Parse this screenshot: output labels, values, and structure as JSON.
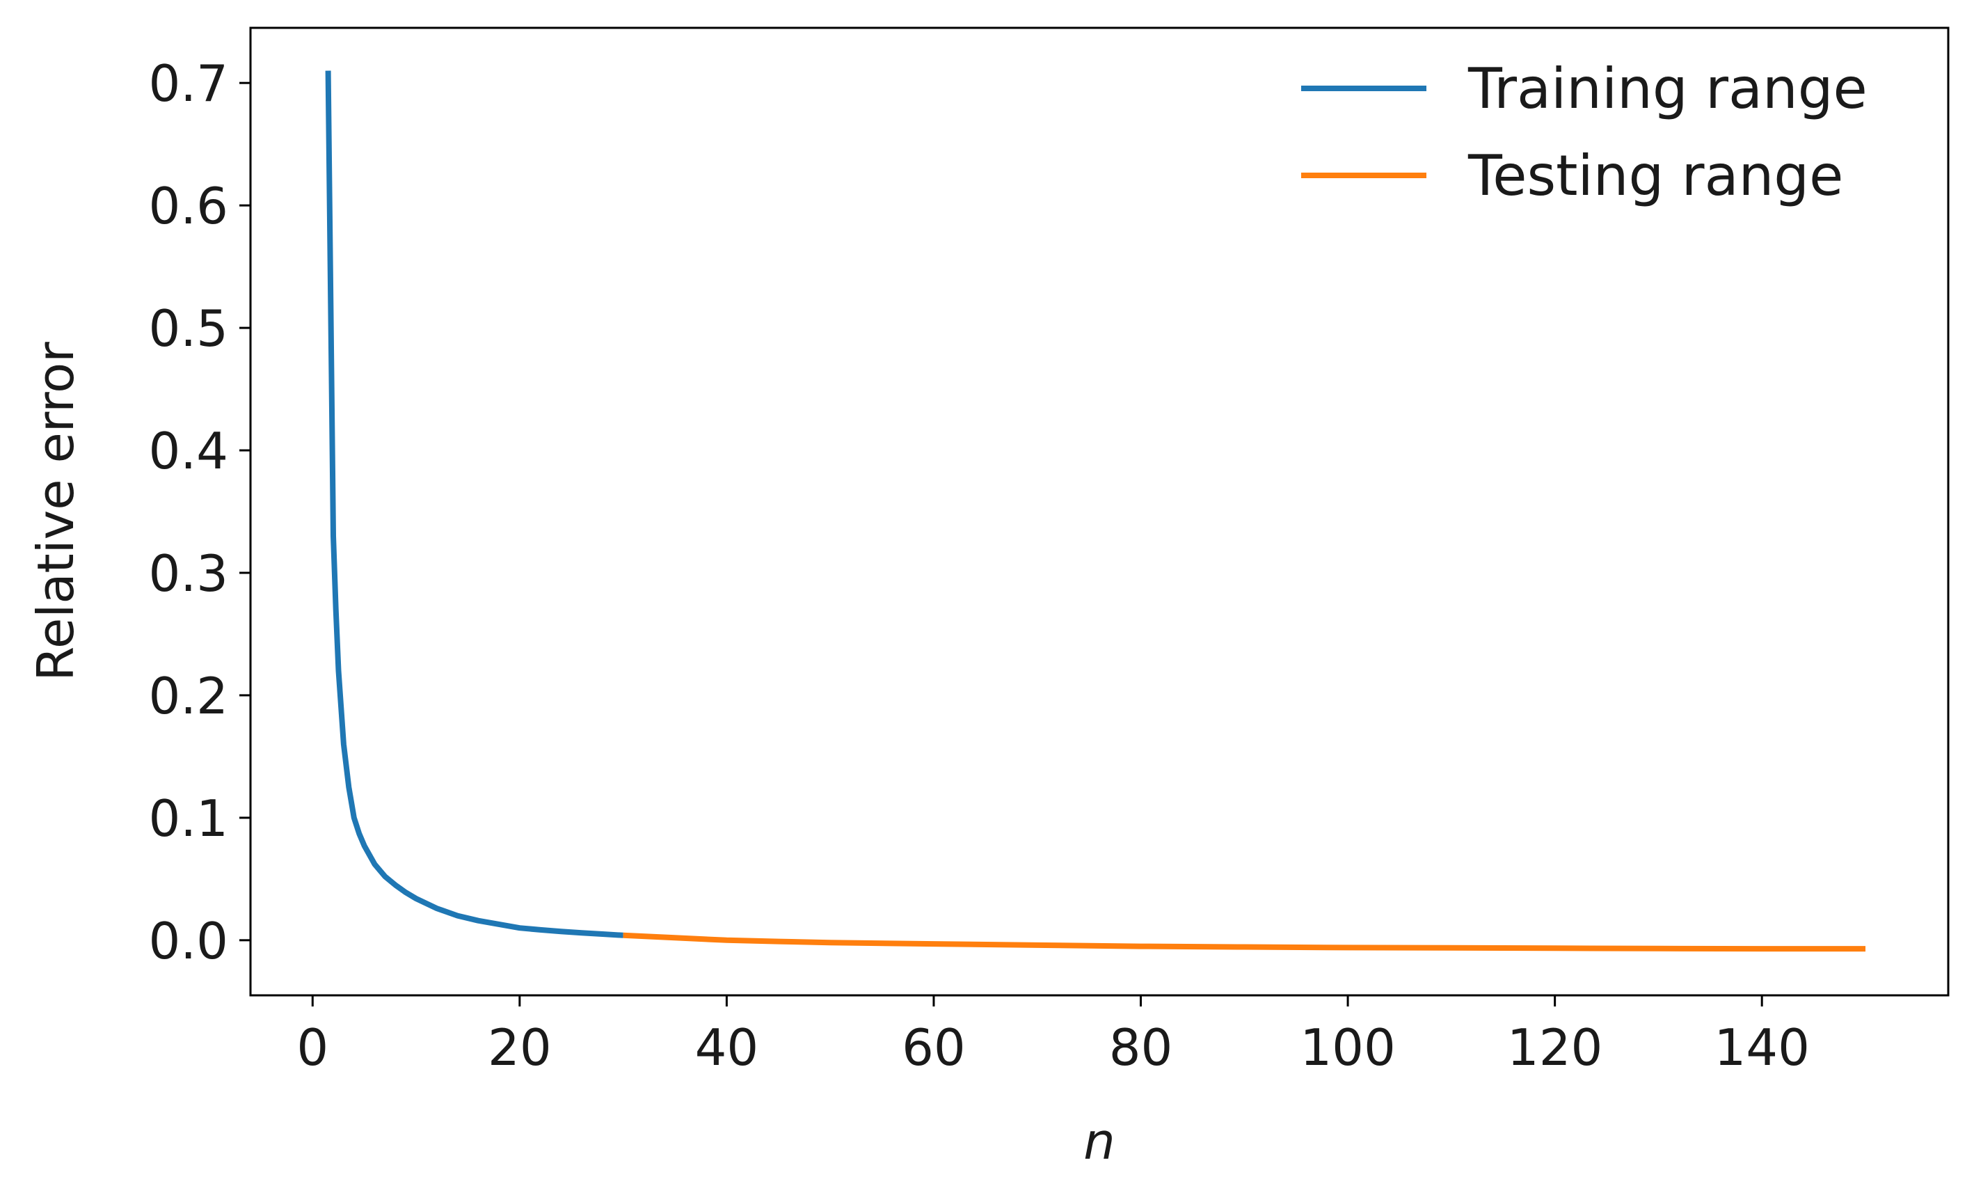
{
  "chart_data": {
    "type": "line",
    "xlabel": "n",
    "ylabel": "Relative error",
    "xlim": [
      -6,
      158
    ],
    "ylim": [
      -0.045,
      0.745
    ],
    "xticks": [
      0,
      20,
      40,
      60,
      80,
      100,
      120,
      140
    ],
    "yticks": [
      0.0,
      0.1,
      0.2,
      0.3,
      0.4,
      0.5,
      0.6,
      0.7
    ],
    "ytick_labels": [
      "0.0",
      "0.1",
      "0.2",
      "0.3",
      "0.4",
      "0.5",
      "0.6",
      "0.7"
    ],
    "grid": false,
    "legend": "top-right",
    "series": [
      {
        "name": "Training range",
        "color": "#1f77b4",
        "x": [
          1.5,
          1.75,
          2,
          2.25,
          2.5,
          3,
          3.5,
          4,
          4.5,
          5,
          6,
          7,
          8,
          9,
          10,
          12,
          14,
          16,
          18,
          20,
          22,
          24,
          26,
          28,
          30
        ],
        "y": [
          0.71,
          0.52,
          0.33,
          0.27,
          0.22,
          0.16,
          0.125,
          0.1,
          0.087,
          0.077,
          0.062,
          0.052,
          0.045,
          0.039,
          0.034,
          0.026,
          0.02,
          0.016,
          0.013,
          0.01,
          0.0085,
          0.0072,
          0.006,
          0.005,
          0.004
        ]
      },
      {
        "name": "Testing range",
        "color": "#ff7f0e",
        "x": [
          30,
          35,
          40,
          45,
          50,
          60,
          70,
          80,
          90,
          100,
          110,
          120,
          130,
          140,
          150
        ],
        "y": [
          0.004,
          0.002,
          0.0,
          -0.001,
          -0.002,
          -0.003,
          -0.004,
          -0.005,
          -0.0055,
          -0.006,
          -0.0062,
          -0.0065,
          -0.0068,
          -0.007,
          -0.007
        ]
      }
    ]
  }
}
